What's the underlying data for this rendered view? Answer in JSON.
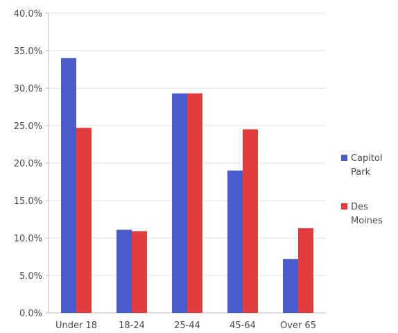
{
  "chart_data": {
    "type": "bar",
    "categories": [
      "Under 18",
      "18-24",
      "25-44",
      "45-64",
      "Over 65"
    ],
    "series": [
      {
        "name": "Capitol Park",
        "legend_lines": [
          "Capitol",
          "Park"
        ],
        "color": "#4a5cc8",
        "values": [
          34.0,
          11.1,
          29.3,
          19.0,
          7.2
        ]
      },
      {
        "name": "Des Moines",
        "legend_lines": [
          "Des",
          "Moines"
        ],
        "color": "#e23c3c",
        "values": [
          24.7,
          10.9,
          29.3,
          24.5,
          11.3
        ]
      }
    ],
    "ylim": [
      0,
      40
    ],
    "yticks": [
      "0.0%",
      "5.0%",
      "10.0%",
      "15.0%",
      "20.0%",
      "25.0%",
      "30.0%",
      "35.0%",
      "40.0%"
    ],
    "grid": true,
    "legend_position": "right",
    "title": "",
    "xlabel": "",
    "ylabel": ""
  }
}
